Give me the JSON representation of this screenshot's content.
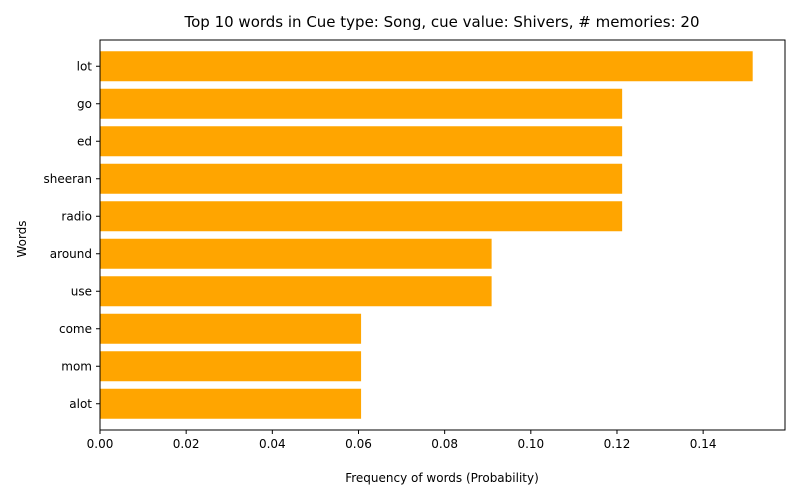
{
  "chart_data": {
    "type": "bar",
    "orientation": "horizontal",
    "title": "Top 10 words in Cue type: Song, cue value: Shivers, # memories: 20",
    "xlabel": "Frequency of words (Probability)",
    "ylabel": "Words",
    "categories": [
      "lot",
      "go",
      "ed",
      "sheeran",
      "radio",
      "around",
      "use",
      "come",
      "mom",
      "alot"
    ],
    "values": [
      0.1515,
      0.1212,
      0.1212,
      0.1212,
      0.1212,
      0.0909,
      0.0909,
      0.0606,
      0.0606,
      0.0606
    ],
    "xlim": [
      0,
      0.159
    ],
    "xticks": [
      0.0,
      0.02,
      0.04,
      0.06,
      0.08,
      0.1,
      0.12,
      0.14
    ],
    "xtick_labels": [
      "0.00",
      "0.02",
      "0.04",
      "0.06",
      "0.08",
      "0.10",
      "0.12",
      "0.14"
    ],
    "bar_color": "#ffa500",
    "grid": false,
    "legend": "none"
  }
}
